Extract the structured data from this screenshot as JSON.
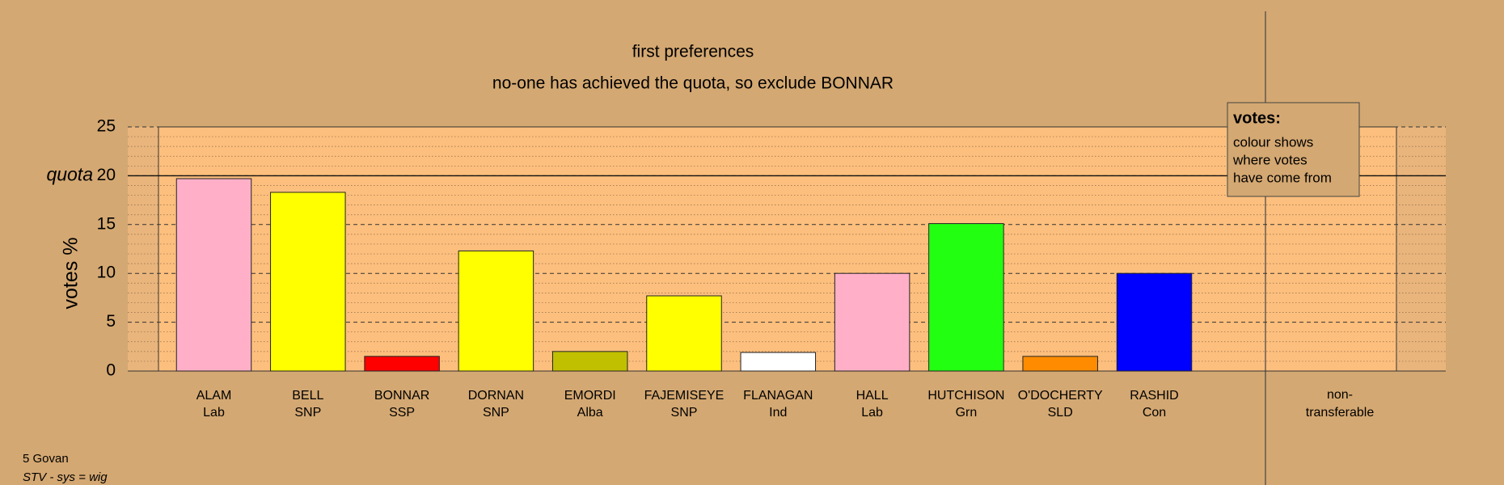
{
  "chart_data": {
    "type": "bar",
    "title": "first preferences",
    "subtitle": "no-one has achieved the quota, so exclude BONNAR",
    "y_label": "votes %",
    "categories": [
      "ALAM",
      "BELL",
      "BONNAR",
      "DORNAN",
      "EMORDI",
      "FAJEMISEYE",
      "FLANAGAN",
      "HALL",
      "HUTCHISON",
      "O'DOCHERTY",
      "RASHID"
    ],
    "parties": [
      "Lab",
      "SNP",
      "SSP",
      "SNP",
      "Alba",
      "SNP",
      "Ind",
      "Lab",
      "Grn",
      "SLD",
      "Con"
    ],
    "values": [
      19.7,
      18.3,
      1.5,
      12.3,
      2.0,
      7.7,
      1.9,
      10.0,
      15.1,
      1.5,
      10.0
    ],
    "colors": [
      "#ffb0c8",
      "#ffff00",
      "#ff0000",
      "#ffff00",
      "#c0c000",
      "#ffff00",
      "#ffffff",
      "#ffb0c8",
      "#22ff11",
      "#ff8c00",
      "#0000ff"
    ],
    "nontransferable": {
      "label_lines": [
        "non-",
        "transferable"
      ],
      "value": 0
    },
    "quota": 20,
    "quota_label": "quota",
    "ylim": [
      0,
      25
    ],
    "yticks": [
      0,
      5,
      10,
      15,
      20,
      25
    ],
    "grid": true,
    "legend": {
      "title": "votes:",
      "lines": [
        "colour shows",
        "where votes",
        "have come from"
      ],
      "corner": "top-right"
    },
    "footer": [
      "5 Govan",
      "STV - sys = wig"
    ]
  }
}
